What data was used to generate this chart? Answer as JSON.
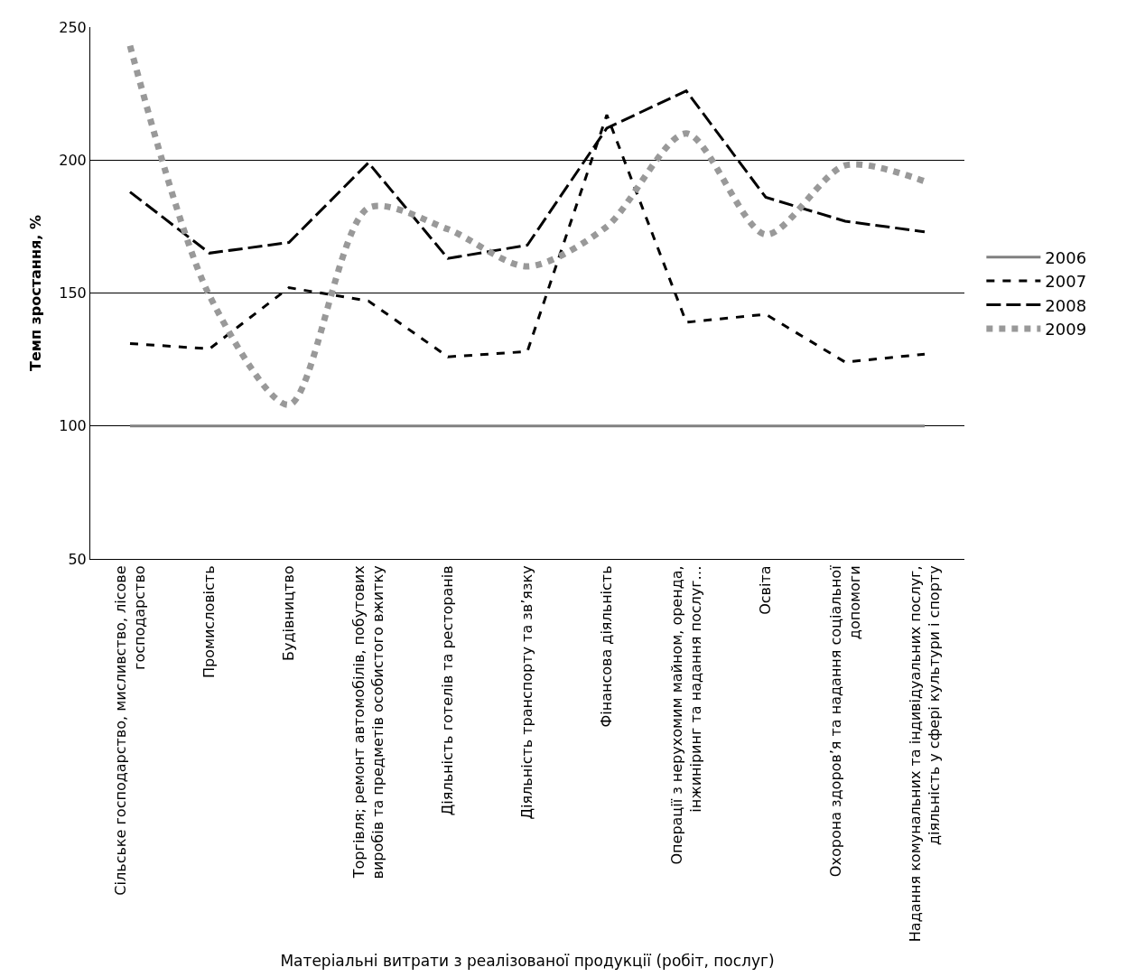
{
  "chart_data": {
    "type": "line",
    "ylabel": "Темп зростання, %",
    "xlabel": "Матеріальні витрати з реалізованої продукції (робіт, послуг)",
    "categories": [
      "Сільське господарство, мисливство, лісове господарство",
      "Промисловість",
      "Будівництво",
      "Торгівля; ремонт автомобілів, побутових виробів та предметів особистого вжитку",
      "Діяльність готелів та ресторанів",
      "Діяльність транспорту та зв’язку",
      "Фінансова діяльність",
      "Операції з нерухомим майном, оренда, інжиніринг та надання послуг…",
      "Освіта",
      "Охорона здоров’я та надання соціальної допомоги",
      "Надання комунальних та індивідуальних послуг, діяльність у сфері культури і спорту"
    ],
    "series": [
      {
        "name": "2006",
        "color": "#808080",
        "line_style": "solid",
        "values": [
          100,
          100,
          100,
          100,
          100,
          100,
          100,
          100,
          100,
          100,
          100
        ]
      },
      {
        "name": "2007",
        "color": "#000000",
        "line_style": "dashed",
        "values": [
          131,
          129,
          152,
          147,
          126,
          128,
          217,
          139,
          142,
          124,
          127
        ]
      },
      {
        "name": "2008",
        "color": "#000000",
        "line_style": "longdash",
        "values": [
          188,
          165,
          169,
          199,
          163,
          168,
          212,
          226,
          186,
          177,
          173
        ]
      },
      {
        "name": "2009",
        "color": "#999999",
        "line_style": "dotted",
        "values": [
          243,
          149,
          108,
          182,
          174,
          160,
          175,
          210,
          172,
          198,
          192
        ]
      }
    ],
    "ylim": [
      50,
      250
    ],
    "yticks": [
      50,
      100,
      150,
      200,
      250
    ],
    "grid": "y",
    "legend": "right"
  }
}
